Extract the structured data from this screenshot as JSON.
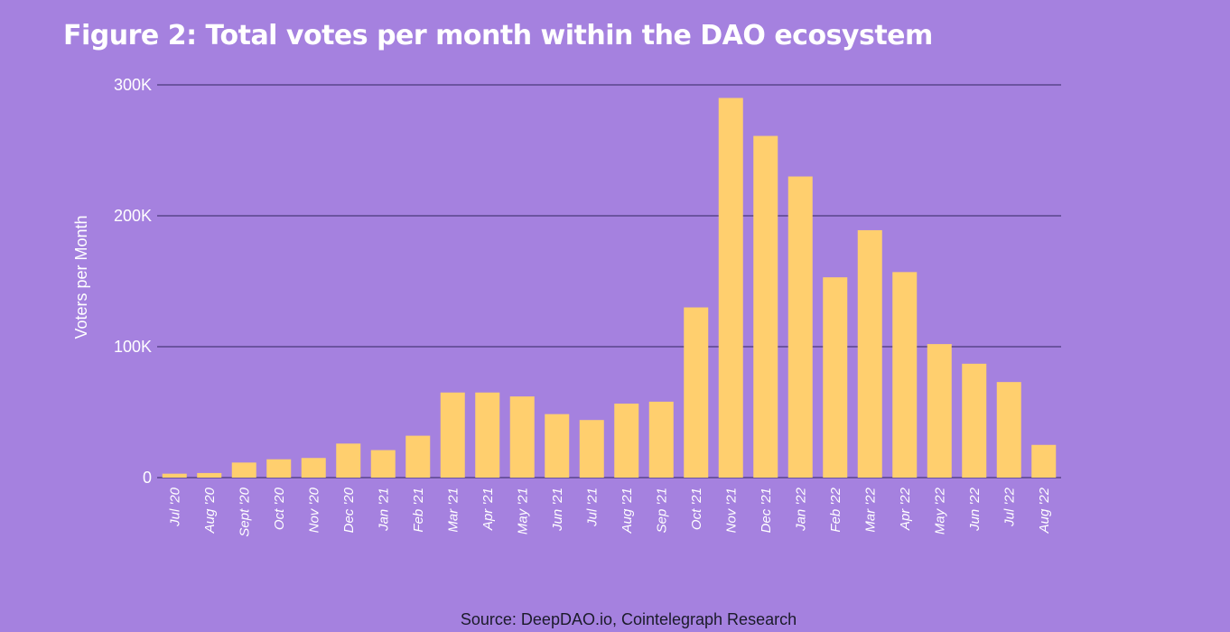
{
  "chart_data": {
    "type": "bar",
    "title": "Figure 2: Total votes per month within the DAO ecosystem",
    "xlabel": "",
    "ylabel": "Voters per Month",
    "source": "Source: DeepDAO.io, Cointelegraph Research",
    "ylim": [
      0,
      300000
    ],
    "yticks": [
      0,
      100000,
      200000,
      300000
    ],
    "ytick_labels": [
      "0",
      "100K",
      "200K",
      "300K"
    ],
    "grid": true,
    "categories": [
      "Jul '20",
      "Aug '20",
      "Sept '20",
      "Oct '20",
      "Nov '20",
      "Dec '20",
      "Jan '21",
      "Feb '21",
      "Mar '21",
      "Apr '21",
      "May '21",
      "Jun '21",
      "Jul '21",
      "Aug '21",
      "Sep '21",
      "Oct '21",
      "Nov '21",
      "Dec '21",
      "Jan '22",
      "Feb '22",
      "Mar '22",
      "Apr '22",
      "May '22",
      "Jun '22",
      "Jul '22",
      "Aug '22"
    ],
    "values": [
      3000,
      3500,
      11500,
      14000,
      15000,
      26000,
      21000,
      32000,
      65000,
      65000,
      62000,
      48500,
      44000,
      56500,
      58000,
      130000,
      290000,
      261000,
      230000,
      153000,
      189000,
      157000,
      102000,
      87000,
      73000,
      25000
    ],
    "colors": {
      "bar": "#ffcf6e",
      "background": "#a581df",
      "grid": "#4b3b7a",
      "text": "#ffffff"
    }
  }
}
